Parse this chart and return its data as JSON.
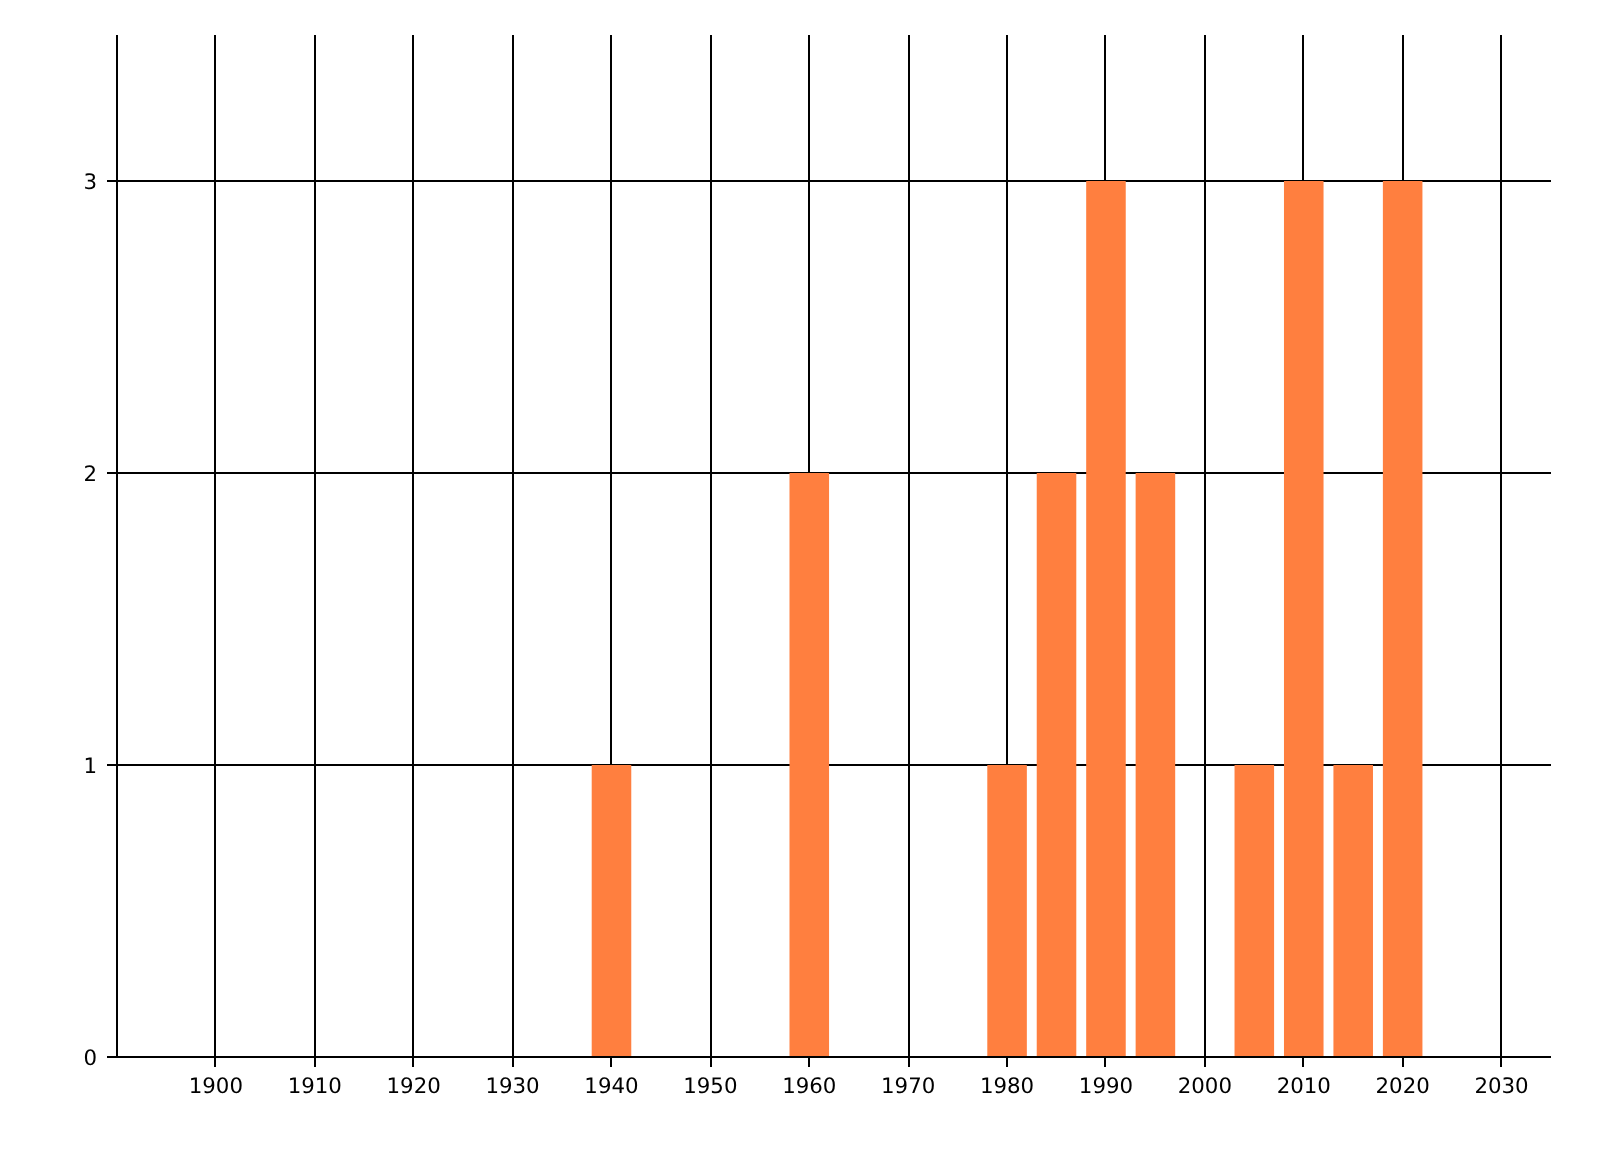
{
  "chart_data": {
    "type": "bar",
    "x": [
      1940,
      1960,
      1980,
      1985,
      1990,
      1995,
      2005,
      2010,
      2015,
      2020
    ],
    "values": [
      1,
      2,
      1,
      2,
      3,
      2,
      1,
      3,
      1,
      3
    ],
    "color": "#ff7f3f",
    "xlim": [
      1890,
      2035
    ],
    "xticks": [
      1900,
      1910,
      1920,
      1930,
      1940,
      1950,
      1960,
      1970,
      1980,
      1990,
      2000,
      2010,
      2020,
      2030
    ],
    "ylim": [
      0,
      3.5
    ],
    "yticks": [
      0,
      1,
      2,
      3
    ],
    "grid": true
  }
}
